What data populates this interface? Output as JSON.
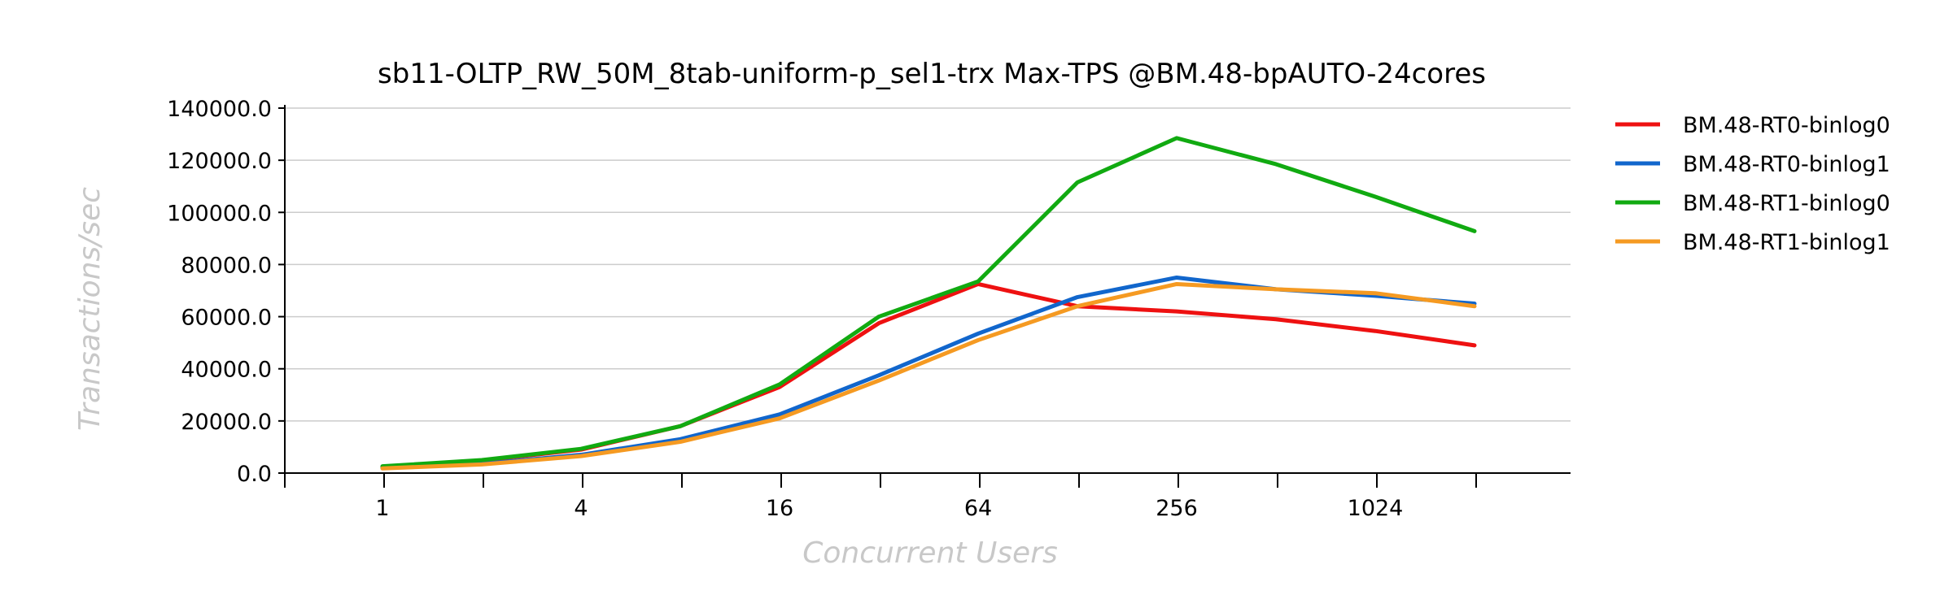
{
  "chart_data": {
    "type": "line",
    "title": "sb11-OLTP_RW_50M_8tab-uniform-p_sel1-trx Max-TPS @BM.48-bpAUTO-24cores",
    "xlabel": "Concurrent Users",
    "ylabel": "Transactions/sec",
    "x": [
      1,
      2,
      4,
      8,
      16,
      32,
      64,
      128,
      256,
      512,
      1024,
      2048
    ],
    "x_scale": "log2",
    "x_tick_labels": [
      "1",
      "4",
      "16",
      "64",
      "256",
      "1024"
    ],
    "ylim": [
      0,
      140000
    ],
    "y_ticks": [
      0,
      20000,
      40000,
      60000,
      80000,
      100000,
      120000,
      140000
    ],
    "y_tick_labels": [
      "0.0",
      "20000.0",
      "40000.0",
      "60000.0",
      "80000.0",
      "100000.0",
      "120000.0",
      "140000.0"
    ],
    "grid": "horizontal",
    "legend_position": "right",
    "series": [
      {
        "name": "BM.48-RT0-binlog0",
        "color": "#ee1111",
        "values": [
          2500,
          4800,
          9000,
          18000,
          33000,
          57500,
          72500,
          64000,
          62000,
          59000,
          54500,
          49000
        ]
      },
      {
        "name": "BM.48-RT0-binlog1",
        "color": "#1166cc",
        "values": [
          2000,
          3500,
          7000,
          13000,
          22500,
          37500,
          53500,
          67500,
          75000,
          70500,
          68000,
          65000
        ]
      },
      {
        "name": "BM.48-RT1-binlog0",
        "color": "#11aa11",
        "values": [
          2600,
          5000,
          9300,
          18000,
          34000,
          60000,
          73500,
          111500,
          128500,
          118500,
          106000,
          92800
        ]
      },
      {
        "name": "BM.48-RT1-binlog1",
        "color": "#f59a22",
        "values": [
          1800,
          3300,
          6500,
          12000,
          21000,
          35500,
          51000,
          64000,
          72500,
          70500,
          69000,
          64000
        ]
      }
    ]
  }
}
